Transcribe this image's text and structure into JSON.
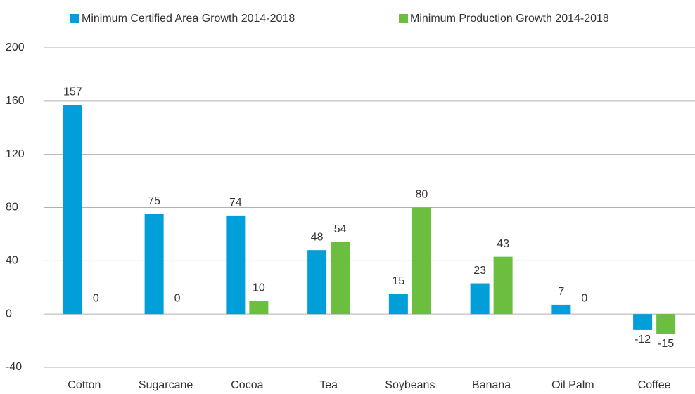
{
  "chart_data": {
    "type": "bar",
    "categories": [
      "Cotton",
      "Sugarcane",
      "Cocoa",
      "Tea",
      "Soybeans",
      "Banana",
      "Oil Palm",
      "Coffee"
    ],
    "series": [
      {
        "name": "Minimum Certified Area Growth 2014-2018",
        "color": "#009fda",
        "values": [
          157,
          75,
          74,
          48,
          15,
          23,
          7,
          -12
        ]
      },
      {
        "name": "Minimum Production Growth 2014-2018",
        "color": "#6cbf3e",
        "values": [
          0,
          0,
          10,
          54,
          80,
          43,
          0,
          -15
        ]
      }
    ],
    "ylim": [
      -40,
      200
    ],
    "yticks": [
      -40,
      0,
      40,
      80,
      120,
      160,
      200
    ],
    "grid": true,
    "legend": "top"
  }
}
